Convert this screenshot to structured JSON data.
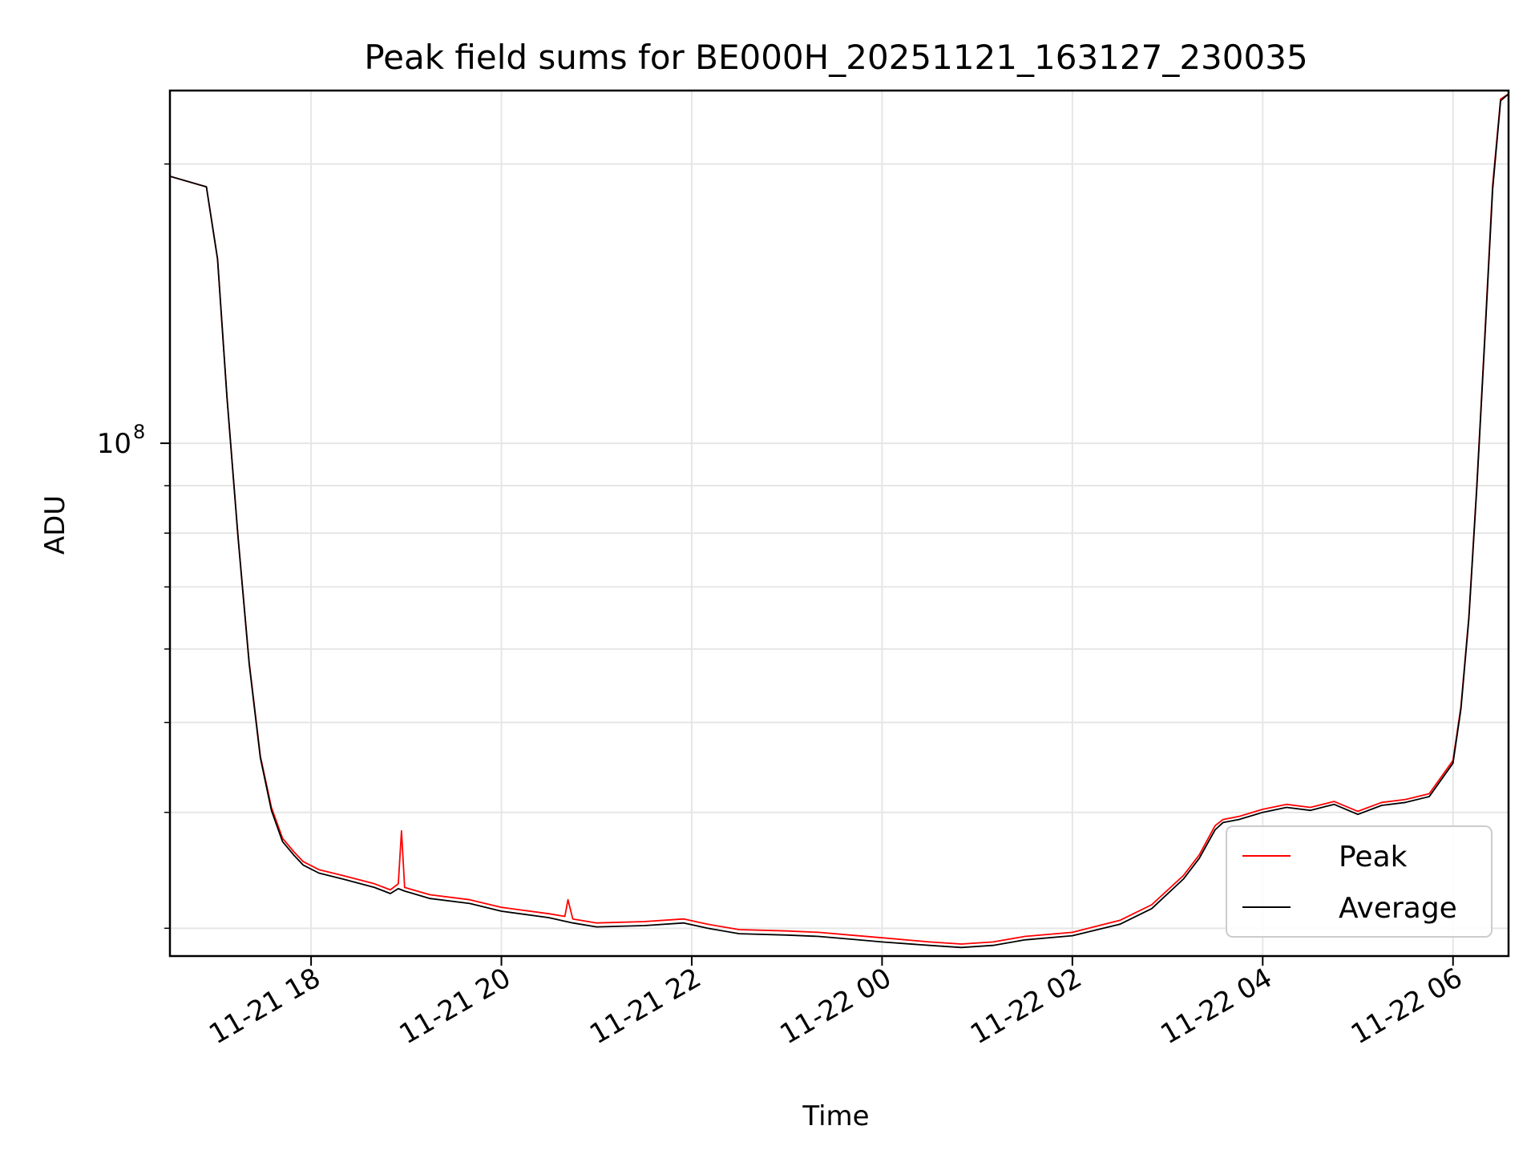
{
  "chart_data": {
    "type": "line",
    "title": "Peak field sums for BE000H_20251121_163127_230035",
    "xlabel": "Time",
    "ylabel": "ADU",
    "yscale": "log",
    "ylim": [
      28000000,
      240000000
    ],
    "xlim": [
      "2025-11-21 16:31",
      "2025-11-22 06:35"
    ],
    "grid": true,
    "legend_position": "lower-right",
    "xticks": [
      {
        "t": "2025-11-21 18:00",
        "label": "11-21 18"
      },
      {
        "t": "2025-11-21 20:00",
        "label": "11-21 20"
      },
      {
        "t": "2025-11-21 22:00",
        "label": "11-21 22"
      },
      {
        "t": "2025-11-22 00:00",
        "label": "11-22 00"
      },
      {
        "t": "2025-11-22 02:00",
        "label": "11-22 02"
      },
      {
        "t": "2025-11-22 04:00",
        "label": "11-22 04"
      },
      {
        "t": "2025-11-22 06:00",
        "label": "11-22 06"
      }
    ],
    "yticks": [
      {
        "value": 100000000,
        "base": "10",
        "exp": "8"
      }
    ],
    "series": [
      {
        "name": "Peak",
        "color": "#ff0000",
        "points": [
          [
            "2025-11-21 16:31",
            194000000
          ],
          [
            "2025-11-21 16:54",
            189000000
          ],
          [
            "2025-11-21 17:01",
            158000000
          ],
          [
            "2025-11-21 17:07",
            112000000
          ],
          [
            "2025-11-21 17:14",
            79000000
          ],
          [
            "2025-11-21 17:21",
            58000000
          ],
          [
            "2025-11-21 17:28",
            46000000
          ],
          [
            "2025-11-21 17:35",
            40500000
          ],
          [
            "2025-11-21 17:42",
            37500000
          ],
          [
            "2025-11-21 17:49",
            36300000
          ],
          [
            "2025-11-21 17:55",
            35400000
          ],
          [
            "2025-11-21 18:05",
            34700000
          ],
          [
            "2025-11-21 18:20",
            34200000
          ],
          [
            "2025-11-21 18:40",
            33500000
          ],
          [
            "2025-11-21 18:50",
            33000000
          ],
          [
            "2025-11-21 18:55",
            33500000
          ],
          [
            "2025-11-21 18:57",
            38200000
          ],
          [
            "2025-11-21 18:59",
            33200000
          ],
          [
            "2025-11-21 19:15",
            32600000
          ],
          [
            "2025-11-21 19:40",
            32200000
          ],
          [
            "2025-11-21 20:00",
            31600000
          ],
          [
            "2025-11-21 20:30",
            31100000
          ],
          [
            "2025-11-21 20:40",
            30900000
          ],
          [
            "2025-11-21 20:42",
            32200000
          ],
          [
            "2025-11-21 20:45",
            30700000
          ],
          [
            "2025-11-21 21:00",
            30400000
          ],
          [
            "2025-11-21 21:30",
            30500000
          ],
          [
            "2025-11-21 21:55",
            30700000
          ],
          [
            "2025-11-21 22:10",
            30300000
          ],
          [
            "2025-11-21 22:30",
            29900000
          ],
          [
            "2025-11-21 23:00",
            29800000
          ],
          [
            "2025-11-21 23:20",
            29700000
          ],
          [
            "2025-11-21 23:40",
            29500000
          ],
          [
            "2025-11-22 00:00",
            29300000
          ],
          [
            "2025-11-22 00:30",
            29000000
          ],
          [
            "2025-11-22 00:50",
            28850000
          ],
          [
            "2025-11-22 01:10",
            29000000
          ],
          [
            "2025-11-22 01:30",
            29400000
          ],
          [
            "2025-11-22 02:00",
            29700000
          ],
          [
            "2025-11-22 02:30",
            30600000
          ],
          [
            "2025-11-22 02:50",
            31800000
          ],
          [
            "2025-11-22 03:10",
            34200000
          ],
          [
            "2025-11-22 03:20",
            36000000
          ],
          [
            "2025-11-22 03:30",
            38700000
          ],
          [
            "2025-11-22 03:35",
            39300000
          ],
          [
            "2025-11-22 03:45",
            39600000
          ],
          [
            "2025-11-22 04:00",
            40300000
          ],
          [
            "2025-11-22 04:15",
            40800000
          ],
          [
            "2025-11-22 04:30",
            40500000
          ],
          [
            "2025-11-22 04:45",
            41100000
          ],
          [
            "2025-11-22 05:00",
            40100000
          ],
          [
            "2025-11-22 05:15",
            41000000
          ],
          [
            "2025-11-22 05:30",
            41300000
          ],
          [
            "2025-11-22 05:45",
            41900000
          ],
          [
            "2025-11-22 06:00",
            45500000
          ],
          [
            "2025-11-22 06:05",
            52000000
          ],
          [
            "2025-11-22 06:10",
            65000000
          ],
          [
            "2025-11-22 06:15",
            90000000
          ],
          [
            "2025-11-22 06:20",
            130000000
          ],
          [
            "2025-11-22 06:25",
            190000000
          ],
          [
            "2025-11-22 06:30",
            235000000
          ],
          [
            "2025-11-22 06:35",
            238000000
          ]
        ]
      },
      {
        "name": "Average",
        "color": "#000000",
        "points": [
          [
            "2025-11-21 16:31",
            194000000
          ],
          [
            "2025-11-21 16:54",
            189000000
          ],
          [
            "2025-11-21 17:01",
            158000000
          ],
          [
            "2025-11-21 17:07",
            112000000
          ],
          [
            "2025-11-21 17:14",
            79000000
          ],
          [
            "2025-11-21 17:21",
            57800000
          ],
          [
            "2025-11-21 17:28",
            45800000
          ],
          [
            "2025-11-21 17:35",
            40200000
          ],
          [
            "2025-11-21 17:42",
            37200000
          ],
          [
            "2025-11-21 17:49",
            36000000
          ],
          [
            "2025-11-21 17:55",
            35100000
          ],
          [
            "2025-11-21 18:05",
            34400000
          ],
          [
            "2025-11-21 18:20",
            33900000
          ],
          [
            "2025-11-21 18:40",
            33200000
          ],
          [
            "2025-11-21 18:50",
            32700000
          ],
          [
            "2025-11-21 18:55",
            33100000
          ],
          [
            "2025-11-21 18:59",
            32900000
          ],
          [
            "2025-11-21 19:15",
            32300000
          ],
          [
            "2025-11-21 19:40",
            31900000
          ],
          [
            "2025-11-21 20:00",
            31300000
          ],
          [
            "2025-11-21 20:30",
            30800000
          ],
          [
            "2025-11-21 20:45",
            30400000
          ],
          [
            "2025-11-21 21:00",
            30100000
          ],
          [
            "2025-11-21 21:30",
            30200000
          ],
          [
            "2025-11-21 21:55",
            30400000
          ],
          [
            "2025-11-21 22:10",
            30000000
          ],
          [
            "2025-11-21 22:30",
            29600000
          ],
          [
            "2025-11-21 23:00",
            29500000
          ],
          [
            "2025-11-21 23:20",
            29400000
          ],
          [
            "2025-11-21 23:40",
            29200000
          ],
          [
            "2025-11-22 00:00",
            29000000
          ],
          [
            "2025-11-22 00:30",
            28750000
          ],
          [
            "2025-11-22 00:50",
            28600000
          ],
          [
            "2025-11-22 01:10",
            28750000
          ],
          [
            "2025-11-22 01:30",
            29150000
          ],
          [
            "2025-11-22 02:00",
            29450000
          ],
          [
            "2025-11-22 02:30",
            30300000
          ],
          [
            "2025-11-22 02:50",
            31500000
          ],
          [
            "2025-11-22 03:10",
            33900000
          ],
          [
            "2025-11-22 03:20",
            35700000
          ],
          [
            "2025-11-22 03:30",
            38300000
          ],
          [
            "2025-11-22 03:35",
            39000000
          ],
          [
            "2025-11-22 03:45",
            39300000
          ],
          [
            "2025-11-22 04:00",
            40000000
          ],
          [
            "2025-11-22 04:15",
            40500000
          ],
          [
            "2025-11-22 04:30",
            40200000
          ],
          [
            "2025-11-22 04:45",
            40800000
          ],
          [
            "2025-11-22 05:00",
            39800000
          ],
          [
            "2025-11-22 05:15",
            40700000
          ],
          [
            "2025-11-22 05:30",
            41000000
          ],
          [
            "2025-11-22 05:45",
            41600000
          ],
          [
            "2025-11-22 06:00",
            45200000
          ],
          [
            "2025-11-22 06:05",
            51700000
          ],
          [
            "2025-11-22 06:10",
            64700000
          ],
          [
            "2025-11-22 06:15",
            89500000
          ],
          [
            "2025-11-22 06:20",
            129000000
          ],
          [
            "2025-11-22 06:25",
            188000000
          ],
          [
            "2025-11-22 06:30",
            234000000
          ],
          [
            "2025-11-22 06:35",
            238000000
          ]
        ]
      }
    ]
  }
}
